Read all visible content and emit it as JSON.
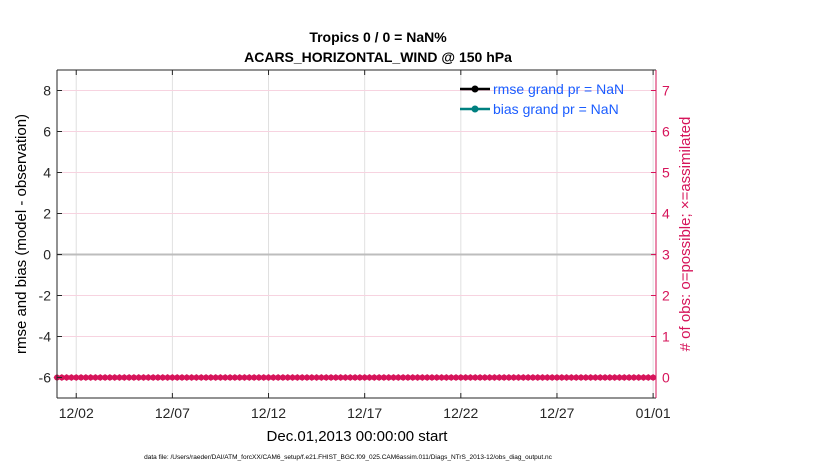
{
  "chart_data": {
    "type": "line",
    "title": "Tropics 0 / 0 = NaN%",
    "subtitle": "ACARS_HORIZONTAL_WIND @ 150 hPa",
    "xlabel": "Dec.01,2013 00:00:00 start",
    "ylabel_left": "rmse and bias (model - observation)",
    "ylabel_right": "# of obs: o=possible; ×=assimilated",
    "x_ticks": [
      "12/02",
      "12/07",
      "12/12",
      "12/17",
      "12/22",
      "12/27",
      "01/01"
    ],
    "x_tick_days": [
      1,
      6,
      11,
      16,
      21,
      26,
      31
    ],
    "xlim_days": [
      0,
      31.15
    ],
    "ylim_left": [
      -7,
      9
    ],
    "y_ticks_left": [
      -6,
      -4,
      -2,
      0,
      2,
      4,
      6,
      8
    ],
    "ylim_right": [
      -0.5,
      7.5
    ],
    "y_ticks_right": [
      0,
      1,
      2,
      3,
      4,
      5,
      6,
      7
    ],
    "grid": true,
    "legend_placement": "top-right",
    "legend": [
      {
        "label": "rmse grand pr = NaN",
        "color": "#000000"
      },
      {
        "label": "bias grand pr = NaN",
        "color": "#008080"
      }
    ],
    "zero_line_left": 0,
    "obs_counts": {
      "time_start": "2013-12-01 00:00",
      "time_step_hours": 6,
      "possible": [
        0,
        0,
        0,
        0,
        0,
        0,
        0,
        0,
        0,
        0,
        0,
        0,
        0,
        0,
        0,
        0,
        0,
        0,
        0,
        0,
        0,
        0,
        0,
        0,
        0,
        0,
        0,
        0,
        0,
        0,
        0,
        0,
        0,
        0,
        0,
        0,
        0,
        0,
        0,
        0,
        0,
        0,
        0,
        0,
        0,
        0,
        0,
        0,
        0,
        0,
        0,
        0,
        0,
        0,
        0,
        0,
        0,
        0,
        0,
        0,
        0,
        0,
        0,
        0,
        0,
        0,
        0,
        0,
        0,
        0,
        0,
        0,
        0,
        0,
        0,
        0,
        0,
        0,
        0,
        0,
        0,
        0,
        0,
        0,
        0,
        0,
        0,
        0,
        0,
        0,
        0,
        0,
        0,
        0,
        0,
        0,
        0,
        0,
        0,
        0,
        0,
        0,
        0,
        0,
        0,
        0,
        0,
        0,
        0,
        0,
        0,
        0,
        0,
        0,
        0,
        0,
        0,
        0,
        0,
        0,
        0,
        0,
        0,
        0,
        0
      ],
      "assimilated": [
        0,
        0,
        0,
        0,
        0,
        0,
        0,
        0,
        0,
        0,
        0,
        0,
        0,
        0,
        0,
        0,
        0,
        0,
        0,
        0,
        0,
        0,
        0,
        0,
        0,
        0,
        0,
        0,
        0,
        0,
        0,
        0,
        0,
        0,
        0,
        0,
        0,
        0,
        0,
        0,
        0,
        0,
        0,
        0,
        0,
        0,
        0,
        0,
        0,
        0,
        0,
        0,
        0,
        0,
        0,
        0,
        0,
        0,
        0,
        0,
        0,
        0,
        0,
        0,
        0,
        0,
        0,
        0,
        0,
        0,
        0,
        0,
        0,
        0,
        0,
        0,
        0,
        0,
        0,
        0,
        0,
        0,
        0,
        0,
        0,
        0,
        0,
        0,
        0,
        0,
        0,
        0,
        0,
        0,
        0,
        0,
        0,
        0,
        0,
        0,
        0,
        0,
        0,
        0,
        0,
        0,
        0,
        0,
        0,
        0,
        0,
        0,
        0,
        0,
        0,
        0,
        0,
        0,
        0,
        0,
        0,
        0,
        0,
        0,
        0
      ],
      "color": "#d6145a"
    },
    "footer": "data file: /Users/raeder/DAI/ATM_forcXX/CAM6_setup/f.e21.FHIST_BGC.f09_025.CAM6assim.011/Diags_NTrS_2013-12/obs_diag_output.nc"
  }
}
